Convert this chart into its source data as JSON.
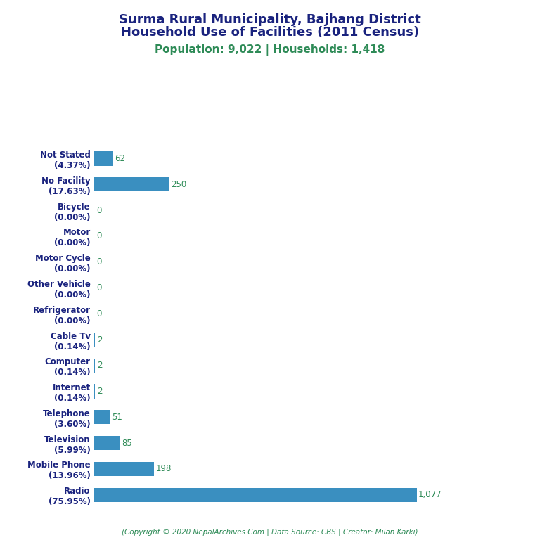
{
  "title_line1": "Surma Rural Municipality, Bajhang District",
  "title_line2": "Household Use of Facilities (2011 Census)",
  "subtitle": "Population: 9,022 | Households: 1,418",
  "footer": "(Copyright © 2020 NepalArchives.Com | Data Source: CBS | Creator: Milan Karki)",
  "categories": [
    "Radio\n(75.95%)",
    "Mobile Phone\n(13.96%)",
    "Television\n(5.99%)",
    "Telephone\n(3.60%)",
    "Internet\n(0.14%)",
    "Computer\n(0.14%)",
    "Cable Tv\n(0.14%)",
    "Refrigerator\n(0.00%)",
    "Other Vehicle\n(0.00%)",
    "Motor Cycle\n(0.00%)",
    "Motor\n(0.00%)",
    "Bicycle\n(0.00%)",
    "No Facility\n(17.63%)",
    "Not Stated\n(4.37%)"
  ],
  "values": [
    1077,
    198,
    85,
    51,
    2,
    2,
    2,
    0,
    0,
    0,
    0,
    0,
    250,
    62
  ],
  "bar_color": "#3A8FC0",
  "title_color": "#1A237E",
  "subtitle_color": "#2E8B57",
  "label_color": "#2E8B57",
  "footer_color": "#2E8B57",
  "ylabel_color": "#1A237E",
  "background_color": "#FFFFFF",
  "xlim": [
    0,
    1300
  ],
  "title_fontsize": 13,
  "subtitle_fontsize": 11,
  "label_fontsize": 8.5,
  "ytick_fontsize": 8.5,
  "footer_fontsize": 7.5
}
